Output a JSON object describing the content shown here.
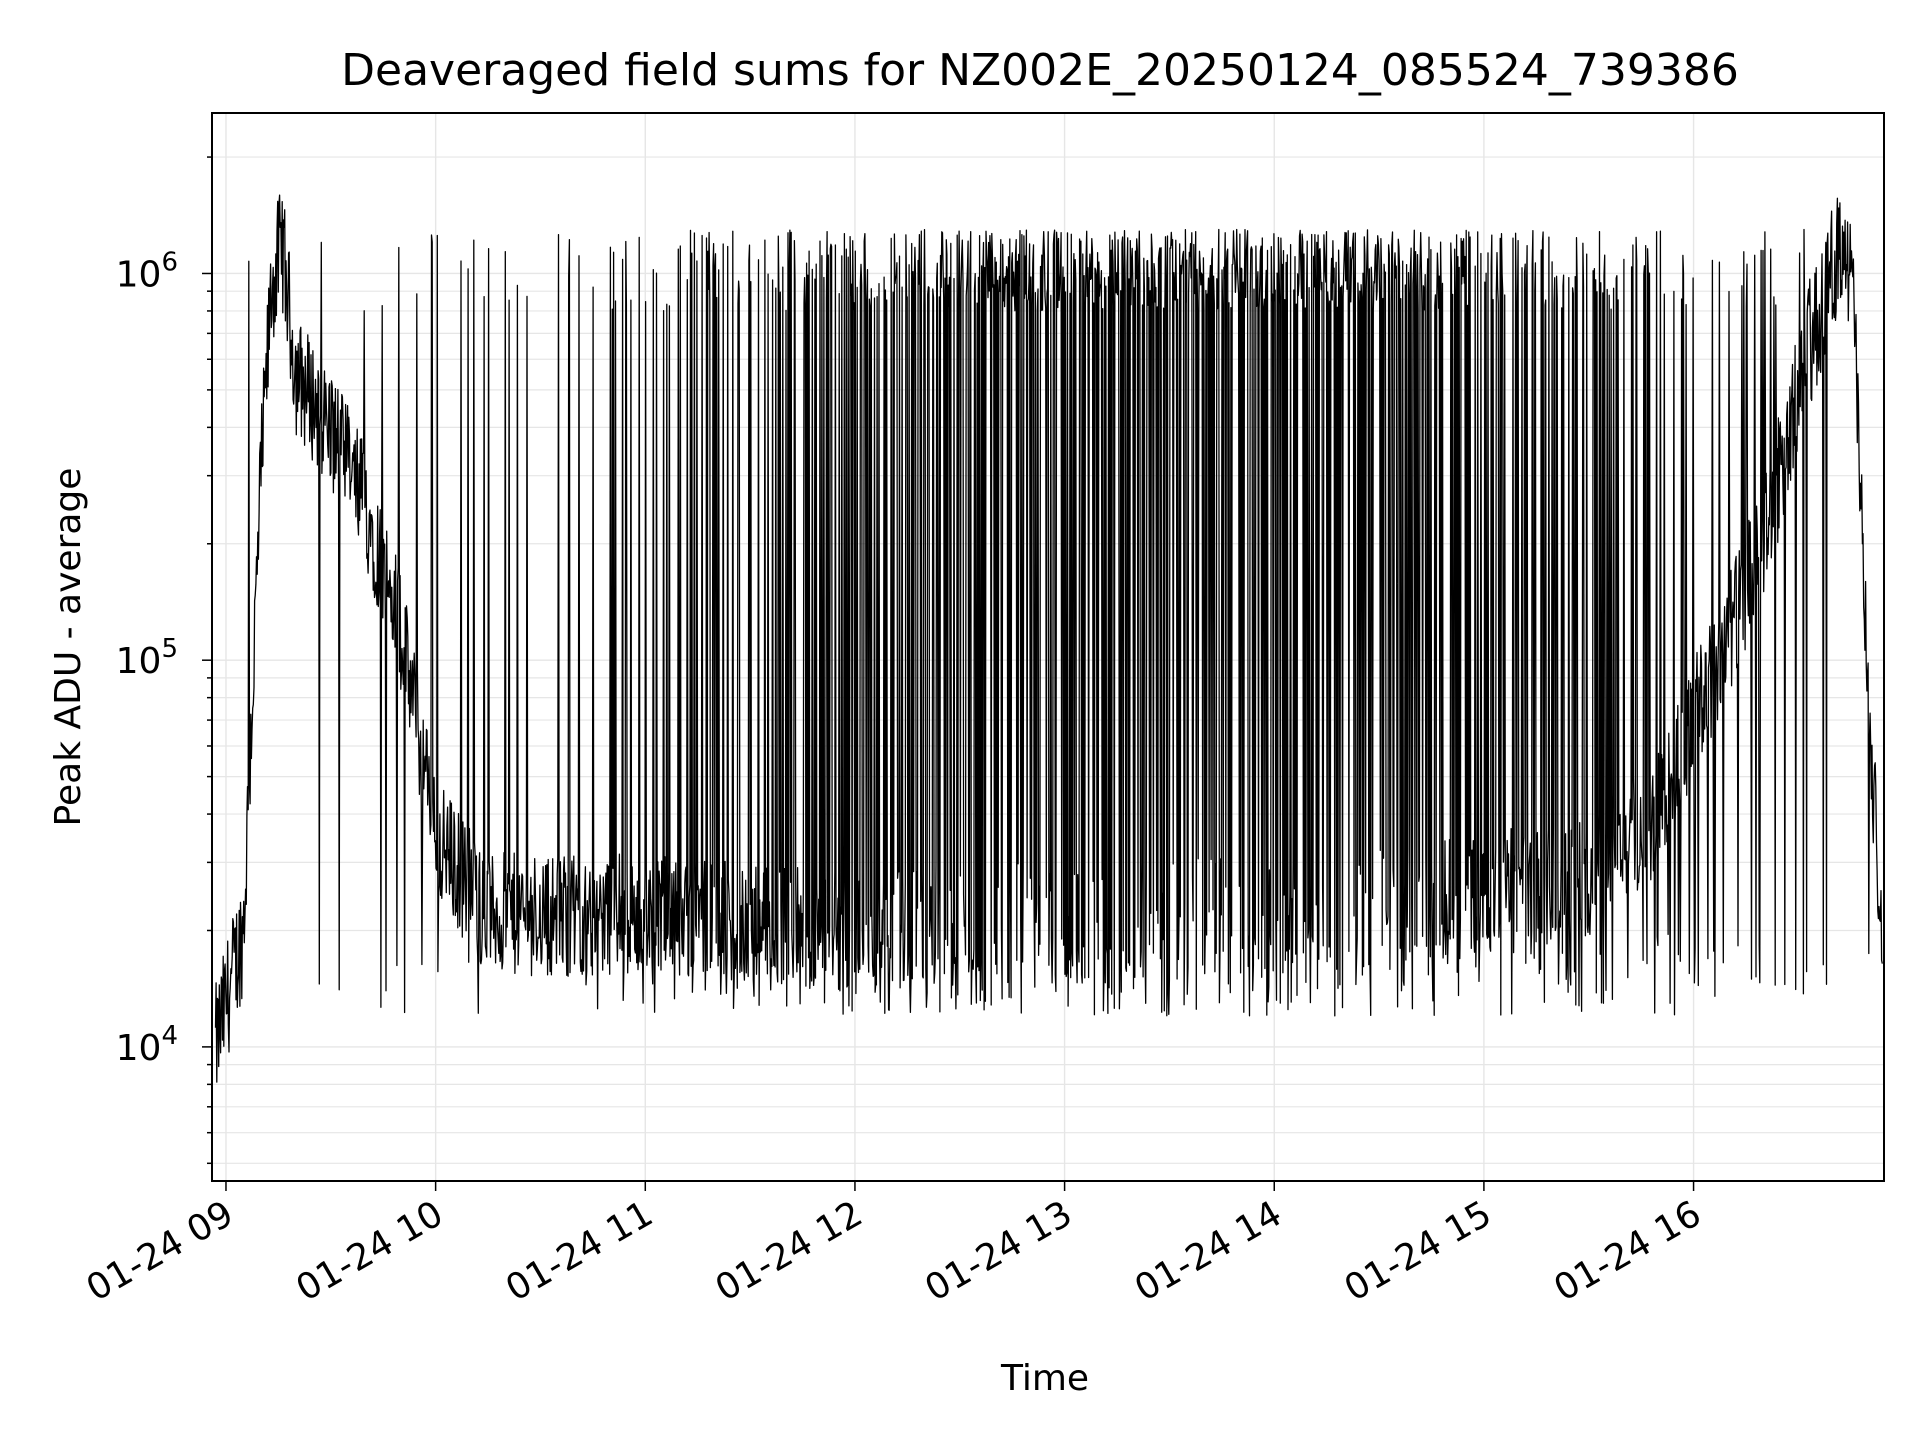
{
  "chart_data": {
    "type": "line",
    "title": "Deaveraged field sums for NZ002E_20250124_085524_739386",
    "xlabel": "Time",
    "ylabel": "Peak ADU - average",
    "yscale": "log",
    "ylim": [
      4500,
      2600000
    ],
    "xlim": [
      "2025-01-24T08:56:00",
      "2025-01-24T16:54:30"
    ],
    "x_tick_labels": [
      "01-24 09",
      "01-24 10",
      "01-24 11",
      "01-24 12",
      "01-24 13",
      "01-24 14",
      "01-24 15",
      "01-24 16"
    ],
    "x_ticks": [
      "2025-01-24T09:00:00",
      "2025-01-24T10:00:00",
      "2025-01-24T11:00:00",
      "2025-01-24T12:00:00",
      "2025-01-24T13:00:00",
      "2025-01-24T14:00:00",
      "2025-01-24T15:00:00",
      "2025-01-24T16:00:00"
    ],
    "y_tick_labels": [
      {
        "base": "10",
        "exp": "4",
        "value": 10000
      },
      {
        "base": "10",
        "exp": "5",
        "value": 100000
      },
      {
        "base": "10",
        "exp": "6",
        "value": 1000000
      }
    ],
    "grid": true,
    "line_color": "#000000",
    "series": [
      {
        "baseline": [
          [
            "2025-01-24T08:57:00",
            10000
          ],
          [
            "2025-01-24T09:05:00",
            20000
          ],
          [
            "2025-01-24T09:10:00",
            300000
          ],
          [
            "2025-01-24T09:13:00",
            900000
          ],
          [
            "2025-01-24T09:16:00",
            1200000
          ],
          [
            "2025-01-24T09:20:00",
            550000
          ],
          [
            "2025-01-24T09:30:00",
            400000
          ],
          [
            "2025-01-24T09:40:00",
            250000
          ],
          [
            "2025-01-24T09:50:00",
            120000
          ],
          [
            "2025-01-24T10:00:00",
            35000
          ],
          [
            "2025-01-24T10:15:00",
            22000
          ],
          [
            "2025-01-24T10:30:00",
            22000
          ],
          [
            "2025-01-24T11:00:00",
            22000
          ],
          [
            "2025-01-24T12:00:00",
            20000
          ],
          [
            "2025-01-24T13:00:00",
            21000
          ],
          [
            "2025-01-24T14:00:00",
            22000
          ],
          [
            "2025-01-24T15:00:00",
            25000
          ],
          [
            "2025-01-24T15:30:00",
            28000
          ],
          [
            "2025-01-24T15:50:00",
            40000
          ],
          [
            "2025-01-24T16:05:00",
            90000
          ],
          [
            "2025-01-24T16:20:00",
            200000
          ],
          [
            "2025-01-24T16:30:00",
            500000
          ],
          [
            "2025-01-24T16:43:00",
            1300000
          ],
          [
            "2025-01-24T16:46:00",
            800000
          ],
          [
            "2025-01-24T16:50:00",
            70000
          ],
          [
            "2025-01-24T16:54:00",
            20000
          ]
        ],
        "spike_peak_min": 800000,
        "spike_peak_max": 1300000,
        "spike_low_min": 12000,
        "spike_low_max": 20000
      }
    ]
  }
}
